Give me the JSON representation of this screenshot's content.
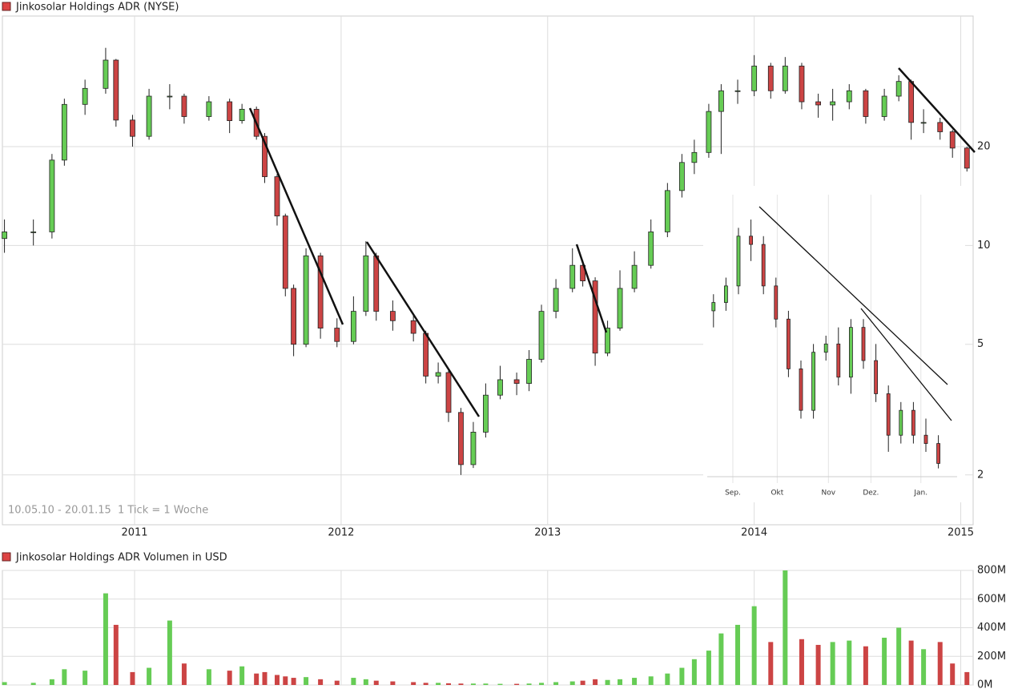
{
  "chart_data": [
    {
      "type": "candlestick",
      "title": "Jinkosolar Holdings ADR (NYSE)",
      "annotations": [
        "10.05.10 - 20.01.15",
        "1 Tick = 1 Woche"
      ],
      "log_scale": true,
      "grid": true,
      "up_color": "#66cc55",
      "down_color": "#cc4444",
      "xlim": [
        2010.36,
        2015.06
      ],
      "xticks": [
        2011,
        2012,
        2013,
        2014,
        2015
      ],
      "ylim": [
        1.41,
        50
      ],
      "yticks": [
        2,
        5,
        10,
        20
      ],
      "x": [
        2010.37,
        2010.51,
        2010.6,
        2010.66,
        2010.76,
        2010.86,
        2010.91,
        2010.99,
        2011.07,
        2011.17,
        2011.24,
        2011.36,
        2011.46,
        2011.52,
        2011.59,
        2011.63,
        2011.69,
        2011.73,
        2011.77,
        2011.83,
        2011.9,
        2011.98,
        2012.06,
        2012.12,
        2012.17,
        2012.25,
        2012.35,
        2012.41,
        2012.47,
        2012.52,
        2012.58,
        2012.64,
        2012.7,
        2012.77,
        2012.85,
        2012.91,
        2012.97,
        2013.04,
        2013.12,
        2013.17,
        2013.23,
        2013.29,
        2013.35,
        2013.42,
        2013.5,
        2013.58,
        2013.65,
        2013.71,
        2013.78,
        2013.84,
        2013.92,
        2014.0,
        2014.08,
        2014.15,
        2014.23,
        2014.31,
        2014.38,
        2014.46,
        2014.54,
        2014.63,
        2014.7,
        2014.76,
        2014.82,
        2014.9,
        2014.96,
        2015.03
      ],
      "open": [
        10.5,
        11,
        11,
        18.2,
        26.9,
        30.1,
        36.7,
        24.1,
        21.5,
        28.5,
        28.5,
        24.7,
        27.4,
        24,
        26,
        21.5,
        16.2,
        12.3,
        7.4,
        5,
        9.3,
        5.6,
        5.1,
        6.3,
        9.3,
        6.3,
        5.9,
        5.4,
        4,
        4.1,
        3.1,
        2.15,
        2.7,
        3.5,
        3.9,
        3.8,
        4.5,
        6.3,
        7.4,
        8.7,
        7.8,
        4.7,
        5.6,
        7.4,
        8.7,
        11,
        14.7,
        17.9,
        19.2,
        25.6,
        29.6,
        29.6,
        35.2,
        29.6,
        35.2,
        27.4,
        26.8,
        27.4,
        29.6,
        24.7,
        28.5,
        31.6,
        23.7,
        23.7,
        22.2,
        19.8
      ],
      "high": [
        12,
        12,
        19,
        28,
        32,
        40,
        37,
        25,
        30,
        31,
        29,
        28.5,
        28,
        27,
        26.5,
        22,
        16.5,
        12.5,
        7.6,
        9.8,
        9.5,
        6,
        7,
        10.3,
        9.5,
        6.8,
        6.1,
        5.5,
        4.4,
        4.2,
        3.2,
        2.9,
        3.8,
        4.3,
        4.1,
        4.8,
        6.6,
        7.9,
        9.8,
        9,
        8,
        5.9,
        8.4,
        9.6,
        12,
        15.5,
        19,
        21,
        27,
        31,
        32,
        38,
        36,
        37.5,
        36,
        29,
        30,
        31,
        30,
        30,
        33,
        32,
        26,
        24.5,
        22.5,
        20
      ],
      "low": [
        9.5,
        10,
        10.5,
        17.5,
        25,
        29,
        23,
        20,
        21,
        26,
        23.5,
        24,
        22,
        23.5,
        21,
        15.5,
        11.5,
        7,
        4.6,
        4.9,
        5.2,
        4.9,
        5,
        6.1,
        5.9,
        5.5,
        5.1,
        3.8,
        3.8,
        2.9,
        2,
        2.1,
        2.6,
        3.4,
        3.5,
        3.6,
        4.4,
        6,
        7.2,
        7.5,
        4.3,
        4.6,
        5.5,
        7.2,
        8.5,
        10.6,
        14,
        16.5,
        18.5,
        19,
        27,
        28.5,
        28,
        29,
        26,
        24.5,
        24,
        26,
        23.5,
        24,
        27.5,
        21,
        22,
        21,
        18.5,
        16.8
      ],
      "close": [
        11,
        11,
        18.2,
        26.9,
        30.1,
        36.7,
        24.1,
        21.5,
        28.5,
        28.5,
        24.7,
        27.4,
        24,
        26,
        21.5,
        16.2,
        12.3,
        7.4,
        5,
        9.3,
        5.6,
        5.1,
        6.3,
        9.3,
        6.3,
        5.9,
        5.4,
        4,
        4.1,
        3.1,
        2.15,
        2.7,
        3.5,
        3.9,
        3.8,
        4.5,
        6.3,
        7.4,
        8.7,
        7.8,
        4.7,
        5.6,
        7.4,
        8.7,
        11,
        14.7,
        17.9,
        19.2,
        25.6,
        29.6,
        29.6,
        35.2,
        29.6,
        35.2,
        27.4,
        26.8,
        27.4,
        29.6,
        24.7,
        28.5,
        31.6,
        23.7,
        23.7,
        22.2,
        19.8,
        17.2
      ]
    },
    {
      "type": "bar",
      "title": "Jinkosolar Holdings ADR Volumen in USD",
      "grid": true,
      "ylim": [
        0,
        800
      ],
      "yticks": [
        {
          "value": 0,
          "label": "0M"
        },
        {
          "value": 200,
          "label": "200M"
        },
        {
          "value": 400,
          "label": "400M"
        },
        {
          "value": 600,
          "label": "600M"
        },
        {
          "value": 800,
          "label": "800M"
        }
      ],
      "values": [
        20,
        15,
        40,
        110,
        100,
        640,
        420,
        90,
        120,
        450,
        150,
        110,
        100,
        130,
        80,
        90,
        70,
        60,
        50,
        55,
        40,
        30,
        50,
        40,
        30,
        25,
        20,
        15,
        15,
        12,
        10,
        10,
        10,
        8,
        8,
        10,
        15,
        20,
        25,
        30,
        40,
        35,
        40,
        50,
        60,
        80,
        120,
        180,
        240,
        360,
        420,
        550,
        300,
        800,
        320,
        280,
        300,
        310,
        270,
        330,
        400,
        310,
        250,
        300,
        150,
        90
      ]
    },
    {
      "type": "candlestick",
      "up_color": "#66cc55",
      "down_color": "#cc4444",
      "xlim": [
        0,
        20
      ],
      "ylim": [
        16,
        33
      ],
      "xticks": [
        {
          "value": 2.05,
          "label": "Sep."
        },
        {
          "value": 5.6,
          "label": "Okt"
        },
        {
          "value": 9.7,
          "label": "Nov"
        },
        {
          "value": 13.1,
          "label": "Dez."
        },
        {
          "value": 17.1,
          "label": "Jan."
        }
      ],
      "x": [
        0.5,
        1.5,
        2.5,
        3.5,
        4.5,
        5.5,
        6.5,
        7.5,
        8.5,
        9.5,
        10.5,
        11.5,
        12.5,
        13.5,
        14.5,
        15.5,
        16.5,
        17.5,
        18.5
      ],
      "open": [
        26,
        26.5,
        27.5,
        30.5,
        30,
        27.5,
        25.5,
        22.5,
        20,
        23.5,
        24,
        22,
        25,
        23,
        21,
        18.5,
        20,
        18.5,
        18
      ],
      "high": [
        27,
        28,
        31,
        31.5,
        30.5,
        28,
        26,
        23,
        24,
        24.5,
        25,
        25.5,
        25.5,
        24,
        21.5,
        20.5,
        20.5,
        19.5,
        18.5
      ],
      "low": [
        25,
        26,
        27,
        29,
        27,
        25,
        22,
        19.5,
        19.5,
        23,
        21.5,
        21,
        22.5,
        20.5,
        17.5,
        18,
        18,
        17.5,
        16.5
      ],
      "close": [
        26.5,
        27.5,
        30.5,
        30,
        27.5,
        25.5,
        22.5,
        20,
        23.5,
        24,
        22,
        25,
        23,
        21,
        18.5,
        20,
        18.5,
        18,
        16.8
      ]
    }
  ]
}
